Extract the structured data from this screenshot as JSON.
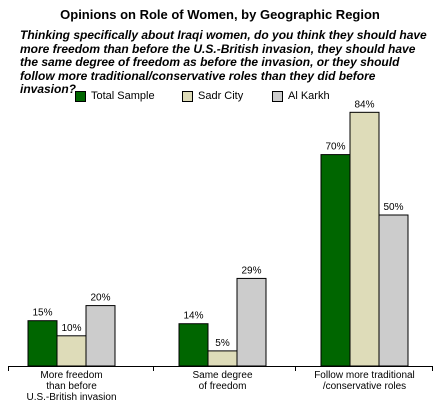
{
  "title": "Opinions on Role of Women, by Geographic Region",
  "question": "Thinking specifically about Iraqi women, do you think they should have more freedom than before the U.S.-British invasion, they should have the same degree of freedom as before the invasion, or they should follow more traditional/conservative roles than they did before invasion?",
  "chart_data": {
    "type": "bar",
    "title": "Opinions on Role of Women, by Geographic Region",
    "categories": [
      [
        "More freedom",
        "than before",
        "U.S.-British invasion"
      ],
      [
        "Same degree",
        "of freedom"
      ],
      [
        "Follow more traditional",
        "/conservative roles"
      ]
    ],
    "series": [
      {
        "name": "Total Sample",
        "color": "#006600",
        "values": [
          15,
          14,
          70
        ]
      },
      {
        "name": "Sadr City",
        "color": "#dedcb9",
        "values": [
          10,
          5,
          84
        ]
      },
      {
        "name": "Al Karkh",
        "color": "#cccccc",
        "values": [
          20,
          29,
          50
        ]
      }
    ],
    "value_suffix": "%",
    "ylim": [
      0,
      84
    ],
    "grid": false,
    "legend_position": "top",
    "xlabel": "",
    "ylabel": ""
  }
}
